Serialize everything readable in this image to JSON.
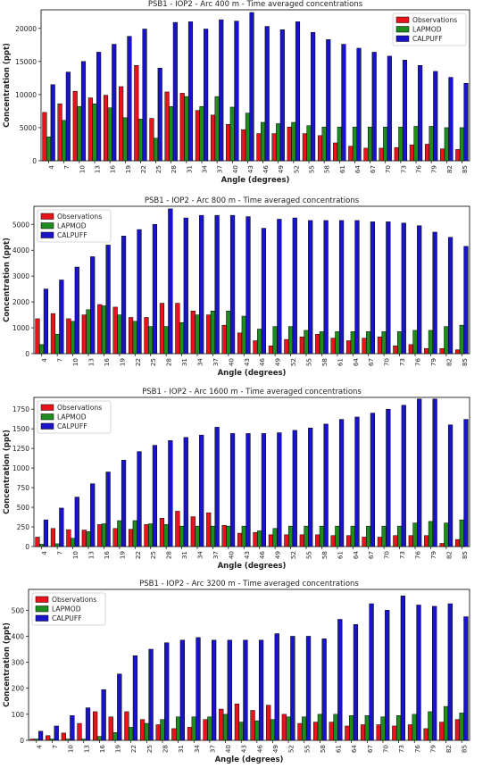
{
  "legend_labels": [
    "Observations",
    "LAPMOD",
    "CALPUFF"
  ],
  "series_colors": {
    "Observations": "#e8141b",
    "LAPMOD": "#1e8c1e",
    "CALPUFF": "#1a14c8"
  },
  "chart_data": [
    {
      "type": "bar",
      "title": "PSB1 - IOP2 - Arc 400 m - Time averaged concentrations",
      "xlabel": "Angle (degrees)",
      "ylabel": "Concentration (ppt)",
      "legend_position": "top-right",
      "ylim": [
        0,
        22800
      ],
      "yticks": [
        0,
        5000,
        10000,
        15000,
        20000
      ],
      "ytick_labels": [
        "0",
        "5000",
        "10000",
        "15000",
        "20000"
      ],
      "categories": [
        "4",
        "7",
        "10",
        "13",
        "16",
        "19",
        "22",
        "25",
        "28",
        "31",
        "34",
        "37",
        "40",
        "43",
        "46",
        "49",
        "52",
        "55",
        "58",
        "61",
        "64",
        "67",
        "70",
        "73",
        "76",
        "79",
        "82",
        "85"
      ],
      "series": [
        {
          "name": "Observations",
          "values": [
            7300,
            8600,
            10500,
            9500,
            9900,
            11200,
            14400,
            6400,
            10400,
            10200,
            7600,
            6900,
            5500,
            4700,
            4100,
            4100,
            5100,
            4100,
            3800,
            2700,
            2200,
            1900,
            1900,
            2000,
            2400,
            2500,
            1800,
            1700
          ]
        },
        {
          "name": "LAPMOD",
          "values": [
            3600,
            6100,
            8200,
            8600,
            8000,
            6500,
            6300,
            3400,
            8200,
            9700,
            8200,
            9700,
            8100,
            7200,
            5800,
            5600,
            5800,
            5300,
            5100,
            5100,
            5100,
            5100,
            5100,
            5100,
            5200,
            5200,
            5000,
            5000
          ]
        },
        {
          "name": "CALPUFF",
          "values": [
            11500,
            13400,
            15000,
            16400,
            17600,
            18800,
            19900,
            14000,
            20900,
            21000,
            19900,
            21300,
            21100,
            22400,
            20300,
            19800,
            21000,
            19400,
            18300,
            17600,
            17000,
            16400,
            15800,
            15200,
            14400,
            13500,
            12600,
            11700
          ]
        }
      ]
    },
    {
      "type": "bar",
      "title": "PSB1 - IOP2 - Arc 800 m - Time averaged concentrations",
      "xlabel": "Angle (degrees)",
      "ylabel": "Concentration (ppt)",
      "legend_position": "top-left",
      "ylim": [
        0,
        5700
      ],
      "yticks": [
        0,
        1000,
        2000,
        3000,
        4000,
        5000
      ],
      "ytick_labels": [
        "0",
        "1000",
        "2000",
        "3000",
        "4000",
        "5000"
      ],
      "categories": [
        "4",
        "7",
        "10",
        "13",
        "16",
        "19",
        "22",
        "25",
        "28",
        "31",
        "34",
        "37",
        "40",
        "43",
        "46",
        "49",
        "52",
        "55",
        "58",
        "61",
        "64",
        "67",
        "70",
        "73",
        "76",
        "79",
        "82",
        "85"
      ],
      "series": [
        {
          "name": "Observations",
          "values": [
            1350,
            1550,
            1350,
            1500,
            1900,
            1800,
            1400,
            1400,
            1950,
            1950,
            1650,
            1500,
            1100,
            800,
            500,
            300,
            550,
            650,
            750,
            600,
            500,
            600,
            650,
            300,
            350,
            200,
            200,
            150
          ]
        },
        {
          "name": "LAPMOD",
          "values": [
            350,
            750,
            1250,
            1700,
            1850,
            1500,
            1250,
            1050,
            1050,
            1200,
            1500,
            1650,
            1650,
            1450,
            950,
            1050,
            1050,
            900,
            850,
            850,
            850,
            850,
            850,
            850,
            900,
            900,
            1050,
            1100
          ]
        },
        {
          "name": "CALPUFF",
          "values": [
            2500,
            2850,
            3350,
            3750,
            4200,
            4550,
            4800,
            5000,
            5600,
            5250,
            5350,
            5350,
            5350,
            5300,
            4850,
            5200,
            5250,
            5150,
            5150,
            5150,
            5150,
            5100,
            5100,
            5050,
            4950,
            4700,
            4500,
            4150
          ]
        }
      ]
    },
    {
      "type": "bar",
      "title": "PSB1 - IOP2 - Arc 1600 m - Time averaged concentrations",
      "xlabel": "Angle (degrees)",
      "ylabel": "Concentration (ppt)",
      "legend_position": "top-left",
      "ylim": [
        0,
        1900
      ],
      "yticks": [
        0,
        250,
        500,
        750,
        1000,
        1250,
        1500,
        1750
      ],
      "ytick_labels": [
        "0",
        "250",
        "500",
        "750",
        "1000",
        "1250",
        "1500",
        "1750"
      ],
      "categories": [
        "4",
        "7",
        "10",
        "13",
        "16",
        "19",
        "22",
        "25",
        "28",
        "31",
        "34",
        "37",
        "40",
        "43",
        "46",
        "49",
        "52",
        "55",
        "58",
        "61",
        "64",
        "67",
        "70",
        "73",
        "76",
        "79",
        "82",
        "85"
      ],
      "series": [
        {
          "name": "Observations",
          "values": [
            120,
            230,
            215,
            210,
            280,
            230,
            220,
            280,
            360,
            450,
            380,
            430,
            270,
            170,
            180,
            150,
            150,
            150,
            150,
            140,
            140,
            120,
            120,
            140,
            140,
            140,
            40,
            90
          ]
        },
        {
          "name": "LAPMOD",
          "values": [
            30,
            35,
            105,
            190,
            290,
            330,
            330,
            290,
            280,
            260,
            260,
            260,
            260,
            260,
            200,
            230,
            260,
            260,
            260,
            260,
            260,
            260,
            260,
            260,
            300,
            320,
            300,
            340
          ]
        },
        {
          "name": "CALPUFF",
          "values": [
            340,
            490,
            630,
            800,
            950,
            1100,
            1210,
            1290,
            1350,
            1390,
            1420,
            1520,
            1440,
            1440,
            1440,
            1450,
            1480,
            1510,
            1560,
            1620,
            1650,
            1700,
            1750,
            1800,
            1880,
            1880,
            1550,
            1620
          ]
        }
      ]
    },
    {
      "type": "bar",
      "title": "PSB1 - IOP2 - Arc 3200 m - Time averaged concentrations",
      "xlabel": "Angle (degrees)",
      "ylabel": "Concentration (ppt)",
      "legend_position": "top-left",
      "ylim": [
        0,
        580
      ],
      "yticks": [
        0,
        100,
        200,
        300,
        400,
        500
      ],
      "ytick_labels": [
        "0",
        "100",
        "200",
        "300",
        "400",
        "500"
      ],
      "categories": [
        "4",
        "7",
        "10",
        "13",
        "16",
        "19",
        "22",
        "25",
        "28",
        "31",
        "34",
        "37",
        "40",
        "43",
        "46",
        "49",
        "52",
        "55",
        "58",
        "61",
        "64",
        "67",
        "70",
        "73",
        "76",
        "79",
        "82",
        "85"
      ],
      "series": [
        {
          "name": "Observations",
          "values": [
            5,
            18,
            28,
            65,
            110,
            90,
            110,
            80,
            60,
            45,
            50,
            80,
            120,
            140,
            115,
            135,
            100,
            65,
            70,
            70,
            55,
            60,
            60,
            55,
            60,
            45,
            70,
            80
          ]
        },
        {
          "name": "LAPMOD",
          "values": [
            5,
            5,
            5,
            5,
            15,
            30,
            50,
            65,
            80,
            90,
            90,
            90,
            100,
            70,
            75,
            80,
            90,
            90,
            100,
            100,
            95,
            95,
            90,
            95,
            100,
            110,
            130,
            105
          ]
        },
        {
          "name": "CALPUFF",
          "values": [
            35,
            55,
            95,
            125,
            195,
            255,
            325,
            350,
            375,
            385,
            395,
            385,
            385,
            385,
            385,
            410,
            400,
            400,
            390,
            465,
            445,
            525,
            500,
            555,
            520,
            515,
            525,
            475
          ]
        }
      ]
    }
  ]
}
